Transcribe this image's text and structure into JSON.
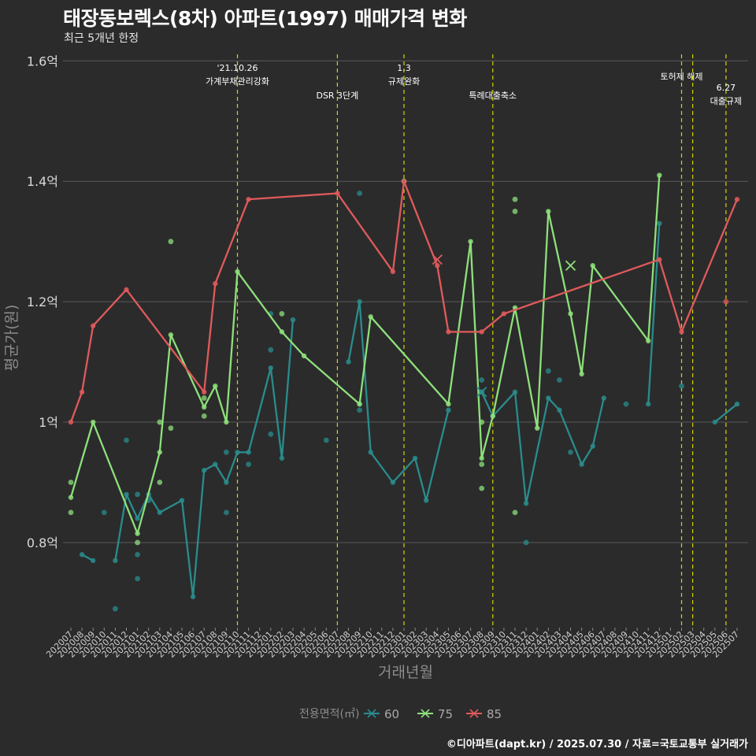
{
  "title": "태장동보렉스(8차) 아파트(1997) 매매가격 변화",
  "subtitle": "최근 5개년 한정",
  "caption": "©디아파트(dapt.kr) / 2025.07.30 / 자료=국토교통부 실거래가",
  "legend_title": "전용면적(㎡)",
  "colors": {
    "background": "#2b2b2c",
    "grid": "#5a5a5a",
    "vline": "#d4d400",
    "s60": "#2a8c8c",
    "s75": "#8ee07a",
    "s85": "#e05a5a"
  },
  "chart_data": {
    "type": "line",
    "xlabel": "거래년월",
    "ylabel": "평균가(원)",
    "ylim": [
      0.66,
      1.62
    ],
    "y_unit": "억",
    "yticks": [
      0.8,
      1.0,
      1.2,
      1.4,
      1.6
    ],
    "ytick_labels": [
      "0.8억",
      "1억",
      "1.2억",
      "1.4억",
      "1.6억"
    ],
    "categories": [
      "202007",
      "202008",
      "202009",
      "202010",
      "202011",
      "202012",
      "202101",
      "202102",
      "202103",
      "202104",
      "202105",
      "202106",
      "202107",
      "202108",
      "202109",
      "202110",
      "202111",
      "202112",
      "202201",
      "202202",
      "202203",
      "202204",
      "202205",
      "202206",
      "202207",
      "202208",
      "202209",
      "202210",
      "202211",
      "202212",
      "202301",
      "202302",
      "202303",
      "202304",
      "202305",
      "202306",
      "202307",
      "202308",
      "202309",
      "202310",
      "202311",
      "202312",
      "202401",
      "202402",
      "202403",
      "202404",
      "202405",
      "202406",
      "202407",
      "202408",
      "202409",
      "202410",
      "202411",
      "202412",
      "202501",
      "202502",
      "202503",
      "202504",
      "202505",
      "202506",
      "202507"
    ],
    "series": [
      {
        "name": "60",
        "lines": [
          [
            [
              "202008",
              0.78
            ],
            [
              "202009",
              0.77
            ]
          ],
          [
            [
              "202011",
              0.77
            ],
            [
              "202012",
              0.88
            ],
            [
              "202101",
              0.84
            ],
            [
              "202102",
              0.88
            ],
            [
              "202103",
              0.85
            ],
            [
              "202105",
              0.87
            ],
            [
              "202106",
              0.71
            ],
            [
              "202107",
              0.92
            ],
            [
              "202108",
              0.93
            ],
            [
              "202109",
              0.9
            ],
            [
              "202110",
              0.95
            ],
            [
              "202111",
              0.95
            ],
            [
              "202201",
              1.09
            ],
            [
              "202202",
              0.94
            ],
            [
              "202203",
              1.17
            ]
          ],
          [
            [
              "202208",
              1.1
            ],
            [
              "202209",
              1.2
            ],
            [
              "202210",
              0.95
            ],
            [
              "202212",
              0.9
            ],
            [
              "202302",
              0.94
            ],
            [
              "202303",
              0.87
            ],
            [
              "202305",
              1.02
            ]
          ],
          [
            [
              "202308",
              1.05
            ],
            [
              "202309",
              1.01
            ],
            [
              "202311",
              1.05
            ],
            [
              "202312",
              0.865
            ],
            [
              "202402",
              1.04
            ],
            [
              "202403",
              1.02
            ],
            [
              "202405",
              0.93
            ],
            [
              "202406",
              0.96
            ],
            [
              "202407",
              1.04
            ]
          ],
          [
            [
              "202411",
              1.03
            ],
            [
              "202412",
              1.33
            ]
          ],
          [
            [
              "202505",
              1.0
            ],
            [
              "202507",
              1.03
            ]
          ]
        ],
        "points": [
          [
            "202010",
            0.85
          ],
          [
            "202011",
            0.69
          ],
          [
            "202012",
            0.97
          ],
          [
            "202101",
            0.78
          ],
          [
            "202101",
            0.74
          ],
          [
            "202101",
            0.88
          ],
          [
            "202102",
            0.87
          ],
          [
            "202109",
            0.85
          ],
          [
            "202109",
            0.95
          ],
          [
            "202111",
            0.93
          ],
          [
            "202201",
            1.12
          ],
          [
            "202201",
            0.98
          ],
          [
            "202201",
            1.18
          ],
          [
            "202206",
            0.97
          ],
          [
            "202209",
            1.38
          ],
          [
            "202209",
            1.03
          ],
          [
            "202209",
            1.02
          ],
          [
            "202308",
            1.07
          ],
          [
            "202308",
            1.05
          ],
          [
            "202312",
            0.8
          ],
          [
            "202402",
            1.085
          ],
          [
            "202403",
            1.07
          ],
          [
            "202404",
            0.95
          ],
          [
            "202409",
            1.03
          ],
          [
            "202502",
            1.06
          ]
        ],
        "x_markers": [
          [
            "202308",
            1.05
          ]
        ]
      },
      {
        "name": "75",
        "lines": [
          [
            [
              "202007",
              0.875
            ],
            [
              "202009",
              1.0
            ],
            [
              "202101",
              0.815
            ],
            [
              "202103",
              0.95
            ],
            [
              "202104",
              1.145
            ],
            [
              "202107",
              1.025
            ],
            [
              "202108",
              1.06
            ],
            [
              "202109",
              1.0
            ],
            [
              "202110",
              1.25
            ],
            [
              "202202",
              1.15
            ],
            [
              "202204",
              1.11
            ],
            [
              "202209",
              1.03
            ],
            [
              "202210",
              1.175
            ],
            [
              "202305",
              1.03
            ],
            [
              "202307",
              1.3
            ],
            [
              "202308",
              0.94
            ],
            [
              "202309",
              1.01
            ],
            [
              "202311",
              1.19
            ],
            [
              "202401",
              0.99
            ],
            [
              "202402",
              1.35
            ],
            [
              "202404",
              1.18
            ],
            [
              "202405",
              1.08
            ],
            [
              "202406",
              1.26
            ],
            [
              "202411",
              1.135
            ],
            [
              "202412",
              1.41
            ]
          ]
        ],
        "points": [
          [
            "202007",
            0.9
          ],
          [
            "202007",
            0.85
          ],
          [
            "202101",
            0.8
          ],
          [
            "202103",
            1.0
          ],
          [
            "202103",
            0.9
          ],
          [
            "202104",
            1.3
          ],
          [
            "202104",
            0.99
          ],
          [
            "202107",
            1.04
          ],
          [
            "202107",
            1.01
          ],
          [
            "202202",
            1.18
          ],
          [
            "202301",
            1.4
          ],
          [
            "202308",
            1.0
          ],
          [
            "202308",
            0.93
          ],
          [
            "202308",
            0.89
          ],
          [
            "202311",
            1.37
          ],
          [
            "202311",
            1.35
          ],
          [
            "202311",
            0.85
          ]
        ],
        "x_markers": [
          [
            "202404",
            1.26
          ]
        ]
      },
      {
        "name": "85",
        "lines": [
          [
            [
              "202007",
              1.0
            ],
            [
              "202008",
              1.05
            ],
            [
              "202009",
              1.16
            ],
            [
              "202012",
              1.22
            ],
            [
              "202107",
              1.05
            ],
            [
              "202108",
              1.23
            ],
            [
              "202111",
              1.37
            ],
            [
              "202207",
              1.38
            ],
            [
              "202212",
              1.25
            ],
            [
              "202301",
              1.4
            ],
            [
              "202304",
              1.26
            ],
            [
              "202305",
              1.15
            ],
            [
              "202308",
              1.15
            ],
            [
              "202310",
              1.18
            ],
            [
              "202412",
              1.27
            ],
            [
              "202502",
              1.15
            ],
            [
              "202507",
              1.37
            ]
          ]
        ],
        "points": [
          [
            "202506",
            1.2
          ]
        ],
        "x_markers": [
          [
            "202304",
            1.27
          ]
        ]
      }
    ],
    "events": [
      {
        "x": "202110",
        "label": [
          "'21.10.26",
          "가계부채관리강화"
        ]
      },
      {
        "x": "202207",
        "label": [
          "DSR 3단계"
        ]
      },
      {
        "x": "202301",
        "label": [
          "1.3",
          "규제완화"
        ]
      },
      {
        "x": "202309",
        "label": [
          "특례대출축소"
        ]
      },
      {
        "x": "202502",
        "label": [
          "토허제 해제"
        ]
      },
      {
        "x": "202503",
        "label": []
      },
      {
        "x": "202506",
        "label": [
          "6.27",
          "대출규제"
        ]
      }
    ],
    "grid": true,
    "legend_position": "bottom"
  }
}
